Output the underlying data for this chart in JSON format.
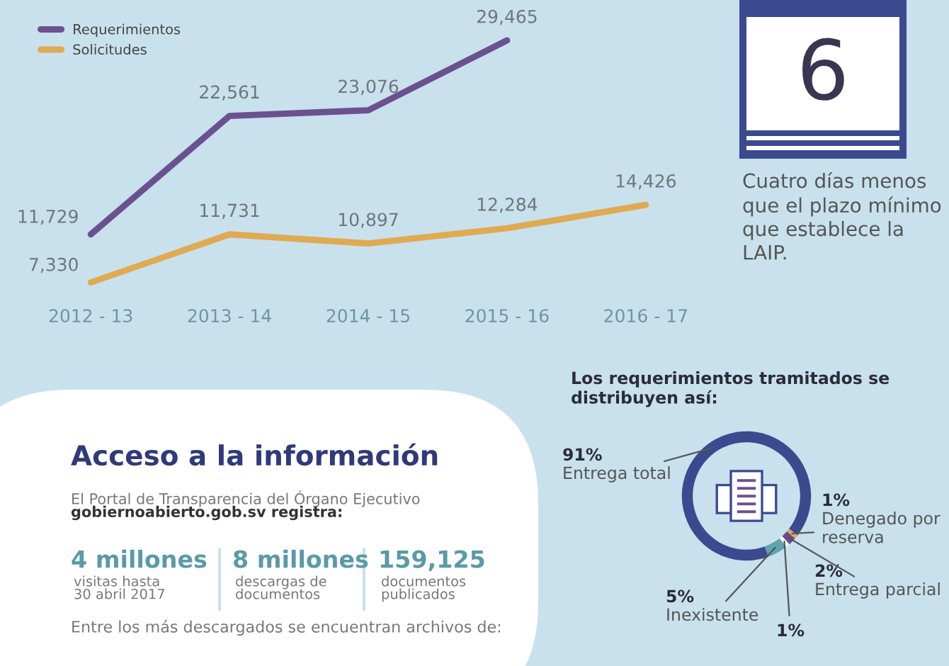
{
  "chart_data": [
    {
      "type": "line",
      "categories": [
        "2012 - 13",
        "2013 - 14",
        "2014 - 15",
        "2015 - 16",
        "2016 - 17"
      ],
      "series": [
        {
          "name": "Requerimientos",
          "color": "#6b5190",
          "values": [
            11729,
            22561,
            23076,
            29465,
            null
          ],
          "value_labels": [
            "11,729",
            "22,561",
            "23,076",
            "29,465",
            null
          ]
        },
        {
          "name": "Solicitudes",
          "color": "#e0aa52",
          "values": [
            7330,
            11731,
            10897,
            12284,
            14426
          ],
          "value_labels": [
            "7,330",
            "11,731",
            "10,897",
            "12,284",
            "14,426"
          ]
        }
      ],
      "legend": "top left",
      "tick_labels": "x"
    },
    {
      "type": "other",
      "annotations": [
        "6",
        "Cuatro días menos que el plazo mínimo que establece la LAIP."
      ]
    },
    {
      "type": "other",
      "title": "Acceso a la información",
      "annotations": [
        "El Portal de Transparencia del Órgano Ejecutivo",
        "gobiernoabierto.gob.sv registra:",
        "4 millones",
        "visitas hasta",
        "30 abril 2017",
        "8 millones",
        "descargas de",
        "documentos",
        "159,125",
        "documentos",
        "publicados",
        "Entre los más descargados se encuentran archivos de:"
      ]
    },
    {
      "type": "donut",
      "title": "Los requerimientos tramitados se distribuyen así:",
      "categories": [
        "Entrega total",
        "Denegado por reserva",
        "Entrega parcial",
        null,
        "Inexistente"
      ],
      "values": [
        91,
        1,
        2,
        1,
        5
      ],
      "colors": [
        "#3b4a8e",
        "#e0aa52",
        "#6b4a8c",
        "#ffffff",
        "#5fa3ad"
      ],
      "value_labels": [
        "91%",
        "1%",
        "2%",
        "1%",
        "5%"
      ]
    }
  ]
}
